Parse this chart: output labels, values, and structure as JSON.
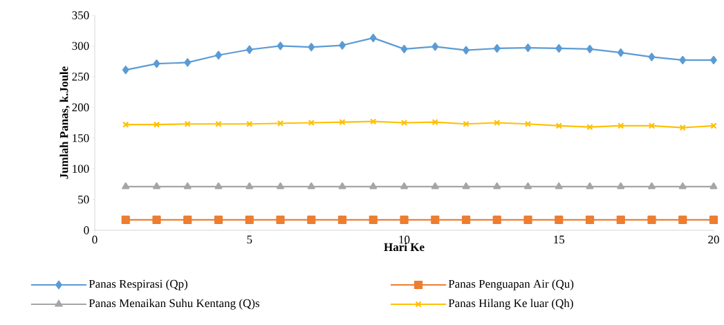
{
  "chart_data": {
    "type": "line",
    "xlabel": "Hari Ke",
    "ylabel": "Jumlah Panas, k.Joule",
    "x": [
      1,
      2,
      3,
      4,
      5,
      6,
      7,
      8,
      9,
      10,
      11,
      12,
      13,
      14,
      15,
      16,
      17,
      18,
      19,
      20
    ],
    "xlim": [
      0,
      20
    ],
    "xticks": [
      0,
      5,
      10,
      15,
      20
    ],
    "ylim": [
      0,
      350
    ],
    "yticks": [
      0,
      50,
      100,
      150,
      200,
      250,
      300,
      350
    ],
    "grid": false,
    "legend": "bottom",
    "line_style": "solid",
    "series": [
      {
        "name": "Panas Respirasi (Qp)",
        "color": "#5b9bd5",
        "marker": "diamond",
        "values": [
          261,
          271,
          273,
          285,
          294,
          300,
          298,
          301,
          313,
          295,
          299,
          293,
          296,
          297,
          296,
          295,
          289,
          282,
          277,
          277
        ]
      },
      {
        "name": "Panas Penguapan Air (Qu)",
        "color": "#ed7d31",
        "marker": "square",
        "values": [
          17,
          17,
          17,
          17,
          17,
          17,
          17,
          17,
          17,
          17,
          17,
          17,
          17,
          17,
          17,
          17,
          17,
          17,
          17,
          17
        ]
      },
      {
        "name": "Panas Menaikan Suhu Kentang (Q)s",
        "color": "#a5a5a5",
        "marker": "triangle",
        "values": [
          71,
          71,
          71,
          71,
          71,
          71,
          71,
          71,
          71,
          71,
          71,
          71,
          71,
          71,
          71,
          71,
          71,
          71,
          71,
          71
        ]
      },
      {
        "name": "Panas Hilang Ke luar (Qh)",
        "color": "#ffc000",
        "marker": "cross",
        "values": [
          172,
          172,
          173,
          173,
          173,
          174,
          175,
          176,
          177,
          175,
          176,
          173,
          175,
          173,
          170,
          168,
          170,
          170,
          167,
          170
        ]
      }
    ]
  }
}
